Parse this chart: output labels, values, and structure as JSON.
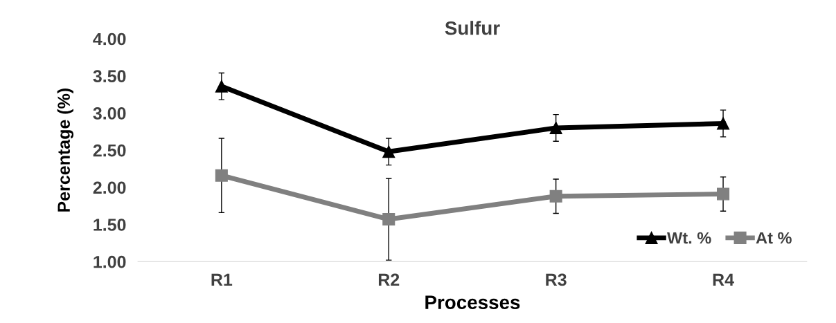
{
  "chart_data": {
    "type": "line",
    "title": "Sulfur",
    "xlabel": "Processes",
    "ylabel": "Percentage (%)",
    "categories": [
      "R1",
      "R2",
      "R3",
      "R4"
    ],
    "series": [
      {
        "name": "Wt. %",
        "color": "#000000",
        "values": [
          3.36,
          2.48,
          2.8,
          2.86
        ],
        "errors": [
          0.18,
          0.18,
          0.18,
          0.18
        ],
        "marker": "triangle"
      },
      {
        "name": "At %",
        "color": "#808080",
        "values": [
          2.16,
          1.57,
          1.88,
          1.91
        ],
        "errors": [
          0.5,
          0.55,
          0.23,
          0.23
        ],
        "marker": "square"
      }
    ],
    "ylim": [
      1.0,
      4.0
    ],
    "yticks": [
      {
        "value": 1.0,
        "label": "1.00"
      },
      {
        "value": 1.5,
        "label": "1.50"
      },
      {
        "value": 2.0,
        "label": "2.00"
      },
      {
        "value": 2.5,
        "label": "2.50"
      },
      {
        "value": 3.0,
        "label": "3.00"
      },
      {
        "value": 3.5,
        "label": "3.50"
      },
      {
        "value": 4.0,
        "label": "4.00"
      }
    ],
    "grid": false,
    "legend": "bottom right",
    "line_style": "solid"
  }
}
